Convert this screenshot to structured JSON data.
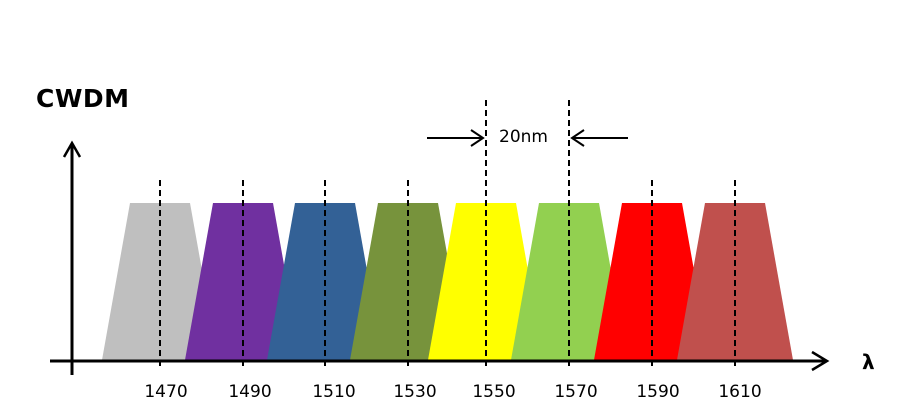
{
  "title": "CWDM",
  "spacing_label": "20nm",
  "x_axis_label": "λ",
  "channels": [
    {
      "wavelength": "1470",
      "color": "#bfbfbf"
    },
    {
      "wavelength": "1490",
      "color": "#7030a0"
    },
    {
      "wavelength": "1510",
      "color": "#336196"
    },
    {
      "wavelength": "1530",
      "color": "#77933c"
    },
    {
      "wavelength": "1550",
      "color": "#ffff00"
    },
    {
      "wavelength": "1570",
      "color": "#92d050"
    },
    {
      "wavelength": "1590",
      "color": "#ff0000"
    },
    {
      "wavelength": "1610",
      "color": "#c0504d"
    }
  ],
  "ticks": [
    "1470",
    "1490",
    "1510",
    "1530",
    "1550",
    "1570",
    "1590",
    "1610"
  ]
}
